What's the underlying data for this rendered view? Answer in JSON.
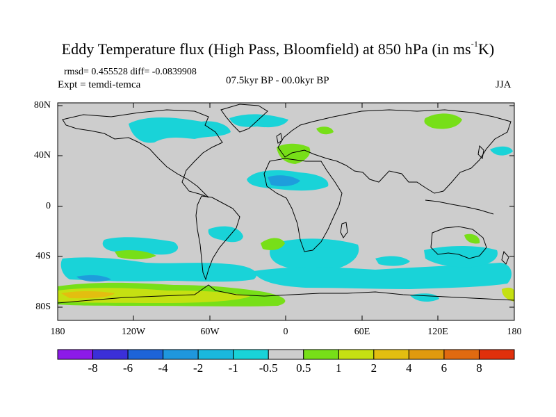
{
  "title": {
    "main": "Eddy Temperature flux (High Pass, Bloomfield) at 850 hPa (in ms",
    "sup": "-1",
    "tail": "K)"
  },
  "stats": "rmsd= 0.455528 diff= -0.0839908",
  "expt": "Expt = temdi-temca",
  "period": "07.5kyr BP - 00.0kyr BP",
  "season": "JJA",
  "lat_labels": [
    "80N",
    "40N",
    "0",
    "40S",
    "80S"
  ],
  "lon_labels": [
    "180",
    "120W",
    "60W",
    "0",
    "60E",
    "120E",
    "180"
  ],
  "colorbar": {
    "colors": [
      "#8c1ae8",
      "#3b2fd8",
      "#1d64d8",
      "#1f97dd",
      "#1ab8dd",
      "#19d3d8",
      "#cdcdcd",
      "#77df18",
      "#c5e012",
      "#e3be10",
      "#e09a0e",
      "#e06a10",
      "#e0300c"
    ],
    "labels": [
      "-8",
      "-6",
      "-4",
      "-2",
      "-1",
      "-0.5",
      "0.5",
      "1",
      "2",
      "4",
      "6",
      "8"
    ]
  },
  "colors": {
    "background_field": "#cdcdcd",
    "coastline": "#000000"
  }
}
